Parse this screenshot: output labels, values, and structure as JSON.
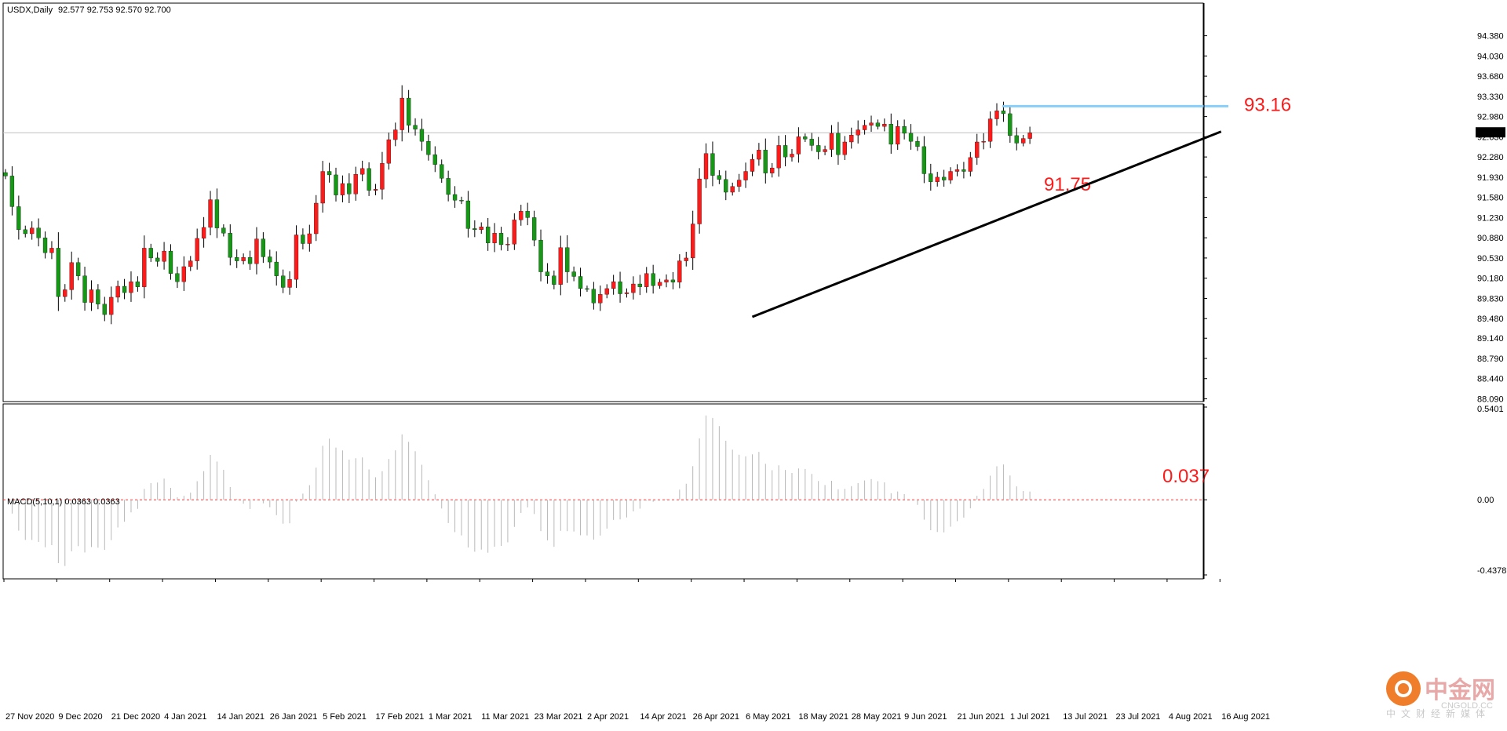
{
  "chart_data": [
    {
      "type": "candlestick",
      "title": "USDX,Daily",
      "ohlc_readout": "92.577 92.753 92.570 92.700",
      "colors": {
        "up": "#ff1a1a",
        "down": "#169816",
        "wick": "#000000",
        "resistance": "#87cefa",
        "trendline": "#000000",
        "last_price_line": "#c0c0c0"
      },
      "ylim": [
        88.09,
        94.68
      ],
      "y_ticks": [
        "94.380",
        "94.030",
        "93.680",
        "93.330",
        "92.980",
        "92.630",
        "92.280",
        "91.930",
        "91.580",
        "91.230",
        "90.880",
        "90.530",
        "90.180",
        "89.830",
        "89.480",
        "89.140",
        "88.790",
        "88.440",
        "88.090"
      ],
      "last_price": "92.700",
      "x_labels": [
        "27 Nov 2020",
        "9 Dec 2020",
        "21 Dec 2020",
        "4 Jan 2021",
        "14 Jan 2021",
        "26 Jan 2021",
        "5 Feb 2021",
        "17 Feb 2021",
        "1 Mar 2021",
        "11 Mar 2021",
        "23 Mar 2021",
        "2 Apr 2021",
        "14 Apr 2021",
        "26 Apr 2021",
        "6 May 2021",
        "18 May 2021",
        "28 May 2021",
        "9 Jun 2021",
        "21 Jun 2021",
        "1 Jul 2021",
        "13 Jul 2021",
        "23 Jul 2021",
        "4 Aug 2021",
        "16 Aug 2021"
      ],
      "close": [
        91.95,
        91.42,
        91.02,
        90.95,
        91.05,
        90.88,
        90.62,
        90.7,
        89.86,
        89.98,
        90.45,
        90.22,
        89.76,
        89.98,
        89.73,
        89.55,
        89.85,
        90.04,
        89.93,
        90.12,
        90.03,
        90.7,
        90.53,
        90.47,
        90.65,
        90.26,
        90.12,
        90.38,
        90.48,
        90.87,
        91.06,
        91.54,
        91.05,
        90.96,
        90.54,
        90.48,
        90.54,
        90.43,
        90.86,
        90.55,
        90.46,
        90.22,
        90.02,
        90.16,
        90.93,
        90.78,
        90.95,
        91.48,
        92.03,
        91.97,
        91.62,
        91.82,
        91.64,
        91.98,
        92.08,
        91.7,
        91.72,
        92.17,
        92.58,
        92.75,
        93.3,
        92.83,
        92.76,
        92.55,
        92.32,
        92.15,
        91.91,
        91.63,
        91.53,
        91.52,
        91.04,
        91.02,
        91.07,
        90.79,
        90.96,
        90.76,
        90.77,
        91.19,
        91.34,
        91.23,
        90.84,
        90.29,
        90.22,
        90.07,
        90.71,
        90.29,
        90.21,
        90.0,
        89.99,
        89.75,
        89.9,
        90.0,
        90.12,
        89.91,
        89.93,
        90.08,
        90.03,
        90.26,
        90.05,
        90.11,
        90.15,
        90.11,
        90.48,
        90.53,
        91.12,
        91.9,
        92.34,
        91.96,
        91.89,
        91.67,
        91.77,
        91.88,
        92.03,
        92.24,
        92.4,
        92.0,
        92.09,
        92.48,
        92.28,
        92.33,
        92.63,
        92.59,
        92.48,
        92.37,
        92.41,
        92.69,
        92.32,
        92.54,
        92.66,
        92.75,
        92.83,
        92.87,
        92.81,
        92.85,
        92.5,
        92.81,
        92.69,
        92.55,
        92.46,
        91.99,
        91.85,
        91.93,
        91.88,
        92.03,
        92.06,
        92.03,
        92.27,
        92.54,
        92.55,
        92.94,
        93.08,
        93.03,
        92.65,
        92.52,
        92.6,
        92.7
      ],
      "annotations": [
        {
          "text": "93.16",
          "kind": "resistance",
          "value": 93.16
        },
        {
          "text": "91.75",
          "kind": "support",
          "value": 91.75
        }
      ],
      "trendline": {
        "from": {
          "x_index": 113,
          "y": 89.51
        },
        "to": {
          "x_index": 178,
          "y": 92.72
        }
      }
    },
    {
      "type": "bar",
      "title": "MACD(5,10,1) 0.0363 0.0363",
      "ylim": [
        -0.4378,
        0.5401
      ],
      "y_ticks": [
        "0.5401",
        "0.00",
        "-0.4378"
      ],
      "zero_line": true,
      "last_value": 0.037,
      "annotation": "0.037"
    }
  ],
  "watermark": {
    "cn": "中金网",
    "en": "CNGOLD.CC",
    "sub": "中文财经新媒体"
  }
}
